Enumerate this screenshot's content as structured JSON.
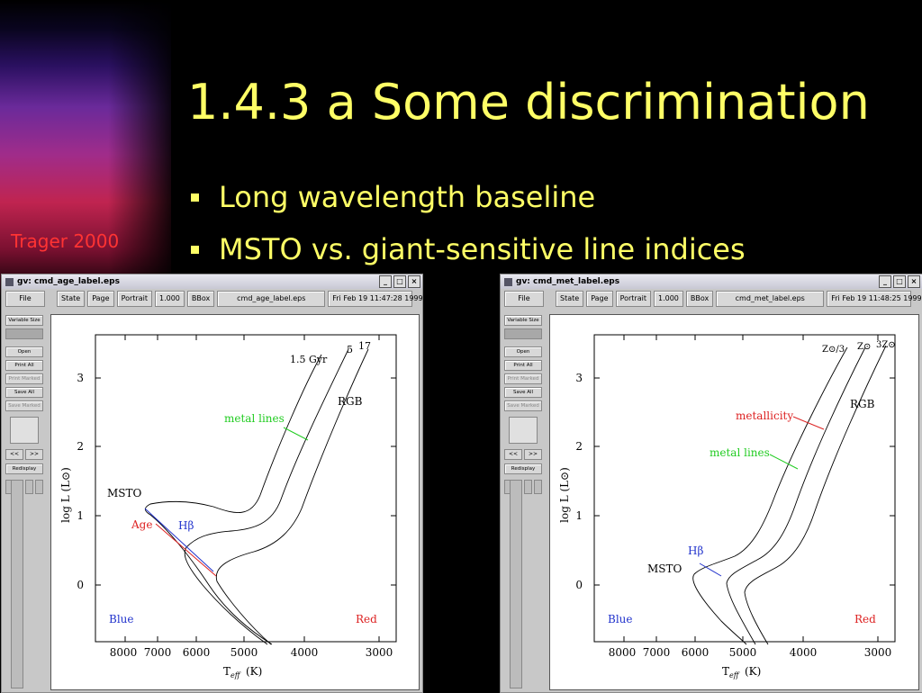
{
  "slide": {
    "title": "1.4.3 a Some discrimination",
    "bullets": [
      "Long wavelength baseline",
      "MSTO vs. giant-sensitive line indices"
    ],
    "credit": "Trager 2000",
    "colors": {
      "text": "#ffff66",
      "credit": "#ff3333",
      "background": "#000000"
    }
  },
  "windows": [
    {
      "title": "gv: cmd_age_label.eps",
      "menu": {
        "file": "File",
        "state": "State",
        "page": "Page",
        "orientation": "Portrait",
        "zoom": "1.000",
        "bbox": "BBox",
        "filename": "cmd_age_label.eps",
        "date": "Fri Feb 19 11:47:28 1999"
      },
      "side": {
        "variable_size": "Variable Size",
        "open": "Open",
        "print_all": "Print All",
        "print_marked": "Print Marked",
        "save_all": "Save All",
        "save_marked": "Save Marked",
        "prev": "<<",
        "next": ">>",
        "redisplay": "Redisplay"
      },
      "plot": {
        "y_ticks": [
          "3",
          "2",
          "1",
          "0"
        ],
        "x_ticks": [
          "8000",
          "7000",
          "6000",
          "5000",
          "4000",
          "3000"
        ],
        "ylabel": "log L (L⊙)",
        "xlabel_main": "T",
        "xlabel_sub": "eff",
        "xlabel_unit": "(K)",
        "labels": {
          "ages": "1.5 Gyr",
          "age5": "5",
          "age17": "17",
          "rgb": "RGB",
          "metal": "metal lines",
          "msto": "MSTO",
          "age": "Age",
          "hbeta": "Hβ",
          "blue": "Blue",
          "red": "Red"
        }
      }
    },
    {
      "title": "gv: cmd_met_label.eps",
      "menu": {
        "file": "File",
        "state": "State",
        "page": "Page",
        "orientation": "Portrait",
        "zoom": "1.000",
        "bbox": "BBox",
        "filename": "cmd_met_label.eps",
        "date": "Fri Feb 19 11:48:25 1999"
      },
      "side": {
        "variable_size": "Variable Size",
        "open": "Open",
        "print_all": "Print All",
        "print_marked": "Print Marked",
        "save_all": "Save All",
        "save_marked": "Save Marked",
        "prev": "<<",
        "next": ">>",
        "redisplay": "Redisplay"
      },
      "plot": {
        "y_ticks": [
          "3",
          "2",
          "1",
          "0"
        ],
        "x_ticks": [
          "8000",
          "7000",
          "6000",
          "5000",
          "4000",
          "3000"
        ],
        "ylabel": "log L (L⊙)",
        "xlabel_main": "T",
        "xlabel_sub": "eff",
        "xlabel_unit": "(K)",
        "labels": {
          "z1": "Z⊙/3",
          "z2": "Z⊙",
          "z3": "3Z⊙",
          "rgb": "RGB",
          "metallicity": "metallicity",
          "metal": "metal lines",
          "hbeta": "Hβ",
          "msto": "MSTO",
          "blue": "Blue",
          "red": "Red"
        }
      }
    }
  ]
}
